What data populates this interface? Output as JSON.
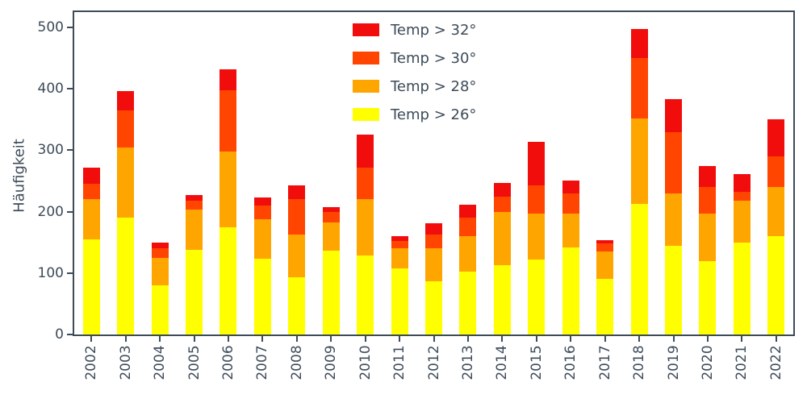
{
  "chart_data": {
    "type": "bar",
    "stacked": true,
    "title": "",
    "xlabel": "",
    "ylabel": "Häufigkeit",
    "ylim": [
      0,
      525
    ],
    "yticks": [
      0,
      100,
      200,
      300,
      400,
      500
    ],
    "grid": false,
    "axis_color": "#3d4b59",
    "categories": [
      "2002",
      "2003",
      "2004",
      "2005",
      "2006",
      "2007",
      "2008",
      "2009",
      "2010",
      "2011",
      "2012",
      "2013",
      "2014",
      "2015",
      "2016",
      "2017",
      "2018",
      "2019",
      "2020",
      "2021",
      "2022"
    ],
    "series": [
      {
        "name": "Temp > 26°",
        "color": "#ffff00",
        "values": [
          155,
          190,
          80,
          138,
          175,
          123,
          93,
          137,
          128,
          107,
          87,
          103,
          113,
          122,
          142,
          91,
          212,
          145,
          120,
          150,
          160
        ]
      },
      {
        "name": "Temp > 28°",
        "color": "#ffa500",
        "values": [
          65,
          115,
          45,
          65,
          123,
          65,
          70,
          46,
          92,
          33,
          53,
          57,
          87,
          75,
          55,
          44,
          140,
          85,
          77,
          68,
          80
        ]
      },
      {
        "name": "Temp > 30°",
        "color": "#ff4500",
        "values": [
          25,
          60,
          15,
          15,
          100,
          22,
          57,
          17,
          52,
          12,
          23,
          30,
          25,
          46,
          33,
          13,
          98,
          100,
          43,
          14,
          50
        ]
      },
      {
        "name": "Temp > 32°",
        "color": "#f20d0d",
        "values": [
          27,
          32,
          10,
          9,
          34,
          13,
          23,
          8,
          53,
          8,
          18,
          22,
          22,
          71,
          21,
          6,
          47,
          53,
          35,
          29,
          60
        ]
      }
    ],
    "legend": {
      "position": "upper center",
      "entries": [
        {
          "label": "Temp > 32°",
          "color": "#f20d0d"
        },
        {
          "label": "Temp > 30°",
          "color": "#ff4500"
        },
        {
          "label": "Temp > 28°",
          "color": "#ffa500"
        },
        {
          "label": "Temp > 26°",
          "color": "#ffff00"
        }
      ]
    }
  }
}
